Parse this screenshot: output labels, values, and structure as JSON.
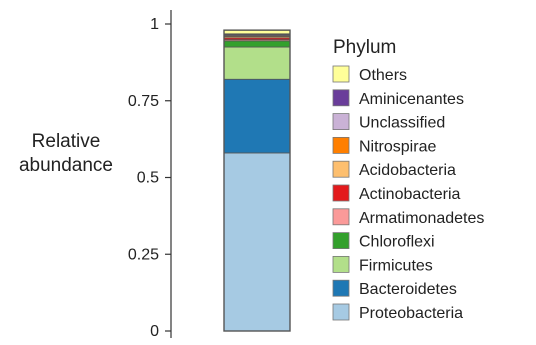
{
  "chart_data": {
    "type": "bar",
    "stacked": true,
    "categories": [
      ""
    ],
    "ylabel_lines": [
      "Relative",
      "abundance"
    ],
    "ylim": [
      0,
      1
    ],
    "yticks": [
      {
        "value": 0,
        "label": "0"
      },
      {
        "value": 0.25,
        "label": "0.25"
      },
      {
        "value": 0.5,
        "label": "0.5"
      },
      {
        "value": 0.75,
        "label": "0.75"
      },
      {
        "value": 1,
        "label": "1"
      }
    ],
    "legend_title": "Phylum",
    "legend_position": "right",
    "series": [
      {
        "name": "Proteobacteria",
        "color": "#a6cae3",
        "values": [
          0.58
        ]
      },
      {
        "name": "Bacteroidetes",
        "color": "#1f78b4",
        "values": [
          0.24
        ]
      },
      {
        "name": "Firmicutes",
        "color": "#b2df8a",
        "values": [
          0.105
        ]
      },
      {
        "name": "Chloroflexi",
        "color": "#33a02c",
        "values": [
          0.02
        ]
      },
      {
        "name": "Armatimonadetes",
        "color": "#fb9a99",
        "values": [
          0.004
        ]
      },
      {
        "name": "Actinobacteria",
        "color": "#e31a1c",
        "values": [
          0.006
        ]
      },
      {
        "name": "Acidobacteria",
        "color": "#fdbf6f",
        "values": [
          0.004
        ]
      },
      {
        "name": "Nitrospirae",
        "color": "#ff7f00",
        "values": [
          0.003
        ]
      },
      {
        "name": "Unclassified",
        "color": "#cab2d6",
        "values": [
          0.003
        ]
      },
      {
        "name": "Aminicenantes",
        "color": "#6a3d9a",
        "values": [
          0.003
        ]
      },
      {
        "name": "Others",
        "color": "#ffff99",
        "values": [
          0.012
        ]
      }
    ]
  }
}
